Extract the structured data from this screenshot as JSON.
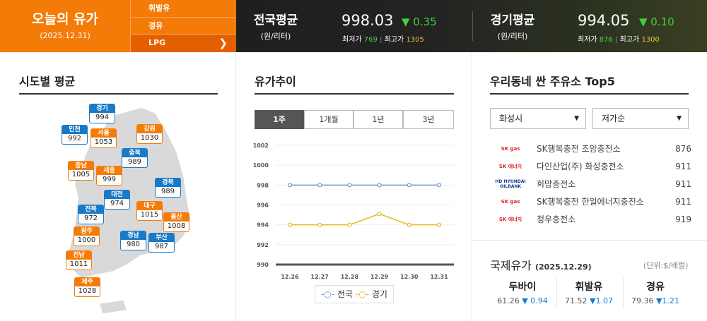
{
  "header": {
    "today_title": "오늘의 유가",
    "today_date": "(2025.12.31)",
    "fuel_menu": [
      {
        "label": "휘발유"
      },
      {
        "label": "경유"
      },
      {
        "label": "LPG",
        "selected": true
      }
    ],
    "national": {
      "title": "전국평균",
      "unit": "(원/리터)",
      "price": "998.03",
      "change": "▼ 0.35",
      "min_label": "최저가",
      "min": "769",
      "max_label": "최고가",
      "max": "1305"
    },
    "gyeonggi": {
      "title": "경기평균",
      "unit": "(원/리터)",
      "price": "994.05",
      "change": "▼ 0.10",
      "min_label": "최저가",
      "min": "876",
      "max_label": "최고가",
      "max": "1300"
    }
  },
  "regional": {
    "title": "시도별 평균",
    "regions": [
      {
        "name": "경기",
        "value": "994",
        "color": "blue"
      },
      {
        "name": "인천",
        "value": "992",
        "color": "blue"
      },
      {
        "name": "서울",
        "value": "1053",
        "color": "orange"
      },
      {
        "name": "강원",
        "value": "1030",
        "color": "orange"
      },
      {
        "name": "충북",
        "value": "989",
        "color": "blue"
      },
      {
        "name": "충남",
        "value": "1005",
        "color": "orange"
      },
      {
        "name": "세종",
        "value": "999",
        "color": "orange"
      },
      {
        "name": "경북",
        "value": "989",
        "color": "blue"
      },
      {
        "name": "대전",
        "value": "974",
        "color": "blue"
      },
      {
        "name": "대구",
        "value": "1015",
        "color": "orange"
      },
      {
        "name": "전북",
        "value": "972",
        "color": "blue"
      },
      {
        "name": "울산",
        "value": "1008",
        "color": "orange"
      },
      {
        "name": "광주",
        "value": "1000",
        "color": "orange"
      },
      {
        "name": "경남",
        "value": "980",
        "color": "blue"
      },
      {
        "name": "부산",
        "value": "987",
        "color": "blue"
      },
      {
        "name": "전남",
        "value": "1011",
        "color": "orange"
      },
      {
        "name": "제주",
        "value": "1028",
        "color": "orange"
      }
    ]
  },
  "trend": {
    "title": "유가추이",
    "tabs": [
      {
        "label": "1주",
        "active": true
      },
      {
        "label": "1개월"
      },
      {
        "label": "1년"
      },
      {
        "label": "3년"
      }
    ]
  },
  "chart_data": {
    "type": "line",
    "categories": [
      "12.26",
      "12.27",
      "12.28",
      "12.29",
      "12.30",
      "12.31"
    ],
    "series": [
      {
        "name": "전국",
        "color": "#6f94d0",
        "values": [
          998,
          998,
          998,
          998,
          998,
          998
        ]
      },
      {
        "name": "경기",
        "color": "#e8b820",
        "values": [
          994,
          994,
          994,
          995.1,
          994,
          994
        ]
      }
    ],
    "ylim": [
      990,
      1002
    ],
    "yticks": [
      "990",
      "992",
      "994",
      "996",
      "998",
      "1000",
      "1002"
    ],
    "grid": true,
    "legend": "bottom"
  },
  "top5": {
    "title": "우리동네 싼 주유소 Top5",
    "region_select": "화성시",
    "sort_select": "저가순",
    "stations": [
      {
        "brand": "SK gas",
        "name": "SK행복충전 조암충전소",
        "price": "876"
      },
      {
        "brand": "SK 에너지",
        "name": "다인산업(주) 화성충전소",
        "price": "911"
      },
      {
        "brand": "HD HYUNDAI OILBANK",
        "name": "희망충전소",
        "price": "911"
      },
      {
        "brand": "SK gas",
        "name": "SK행복충전 한일에너지충전소",
        "price": "911"
      },
      {
        "brand": "SK 에너지",
        "name": "청우충전소",
        "price": "919"
      }
    ]
  },
  "intl": {
    "title": "국제유가",
    "date": "(2025.12.29)",
    "unit": "(단위:$/배럴)",
    "items": [
      {
        "name": "두바이",
        "price": "61.26",
        "change": "▼ 0.94"
      },
      {
        "name": "휘발유",
        "price": "71.52",
        "change": "▼1.07"
      },
      {
        "name": "경유",
        "price": "79.36",
        "change": "▼1.21"
      }
    ]
  }
}
